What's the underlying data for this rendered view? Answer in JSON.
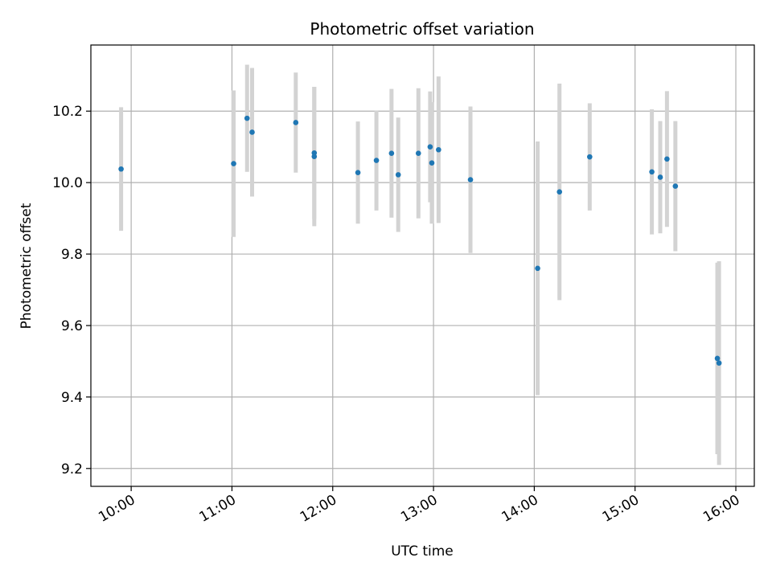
{
  "chart_data": {
    "type": "scatter",
    "title": "Photometric offset variation",
    "xlabel": "UTC time",
    "ylabel": "Photometric offset",
    "x_ticks": [
      "10:00",
      "11:00",
      "12:00",
      "13:00",
      "14:00",
      "15:00",
      "16:00"
    ],
    "y_ticks": [
      "9.2",
      "9.4",
      "9.6",
      "9.8",
      "10.0",
      "10.2"
    ],
    "xlim": [
      "09:36",
      "16:11"
    ],
    "ylim": [
      9.15,
      10.385
    ],
    "grid": true,
    "error_bars": "vertical",
    "points": [
      {
        "x": "09:54",
        "y": 10.038,
        "err": 0.173
      },
      {
        "x": "11:01",
        "y": 10.053,
        "err": 0.205
      },
      {
        "x": "11:09",
        "y": 10.18,
        "err": 0.15
      },
      {
        "x": "11:12",
        "y": 10.141,
        "err": 0.18
      },
      {
        "x": "11:38",
        "y": 10.168,
        "err": 0.14
      },
      {
        "x": "11:49",
        "y": 10.083,
        "err": 0.185
      },
      {
        "x": "11:49",
        "y": 10.073,
        "err": 0.195
      },
      {
        "x": "12:15",
        "y": 10.028,
        "err": 0.143
      },
      {
        "x": "12:26",
        "y": 10.062,
        "err": 0.14
      },
      {
        "x": "12:35",
        "y": 10.082,
        "err": 0.18
      },
      {
        "x": "12:39",
        "y": 10.022,
        "err": 0.16
      },
      {
        "x": "12:51",
        "y": 10.082,
        "err": 0.182
      },
      {
        "x": "12:58",
        "y": 10.1,
        "err": 0.155
      },
      {
        "x": "12:59",
        "y": 10.055,
        "err": 0.17
      },
      {
        "x": "13:03",
        "y": 10.092,
        "err": 0.205
      },
      {
        "x": "13:22",
        "y": 10.008,
        "err": 0.205
      },
      {
        "x": "14:02",
        "y": 9.76,
        "err": 0.355
      },
      {
        "x": "14:15",
        "y": 9.974,
        "err": 0.303
      },
      {
        "x": "14:33",
        "y": 10.072,
        "err": 0.15
      },
      {
        "x": "15:10",
        "y": 10.03,
        "err": 0.175
      },
      {
        "x": "15:15",
        "y": 10.015,
        "err": 0.157
      },
      {
        "x": "15:19",
        "y": 10.066,
        "err": 0.19
      },
      {
        "x": "15:24",
        "y": 9.99,
        "err": 0.182
      },
      {
        "x": "15:49",
        "y": 9.508,
        "err": 0.268
      },
      {
        "x": "15:50",
        "y": 9.495,
        "err": 0.285
      }
    ],
    "colors": {
      "marker": "#1f77b4",
      "error_bar": "#d3d3d3",
      "grid": "#b0b0b0",
      "axes": "#000000"
    }
  }
}
